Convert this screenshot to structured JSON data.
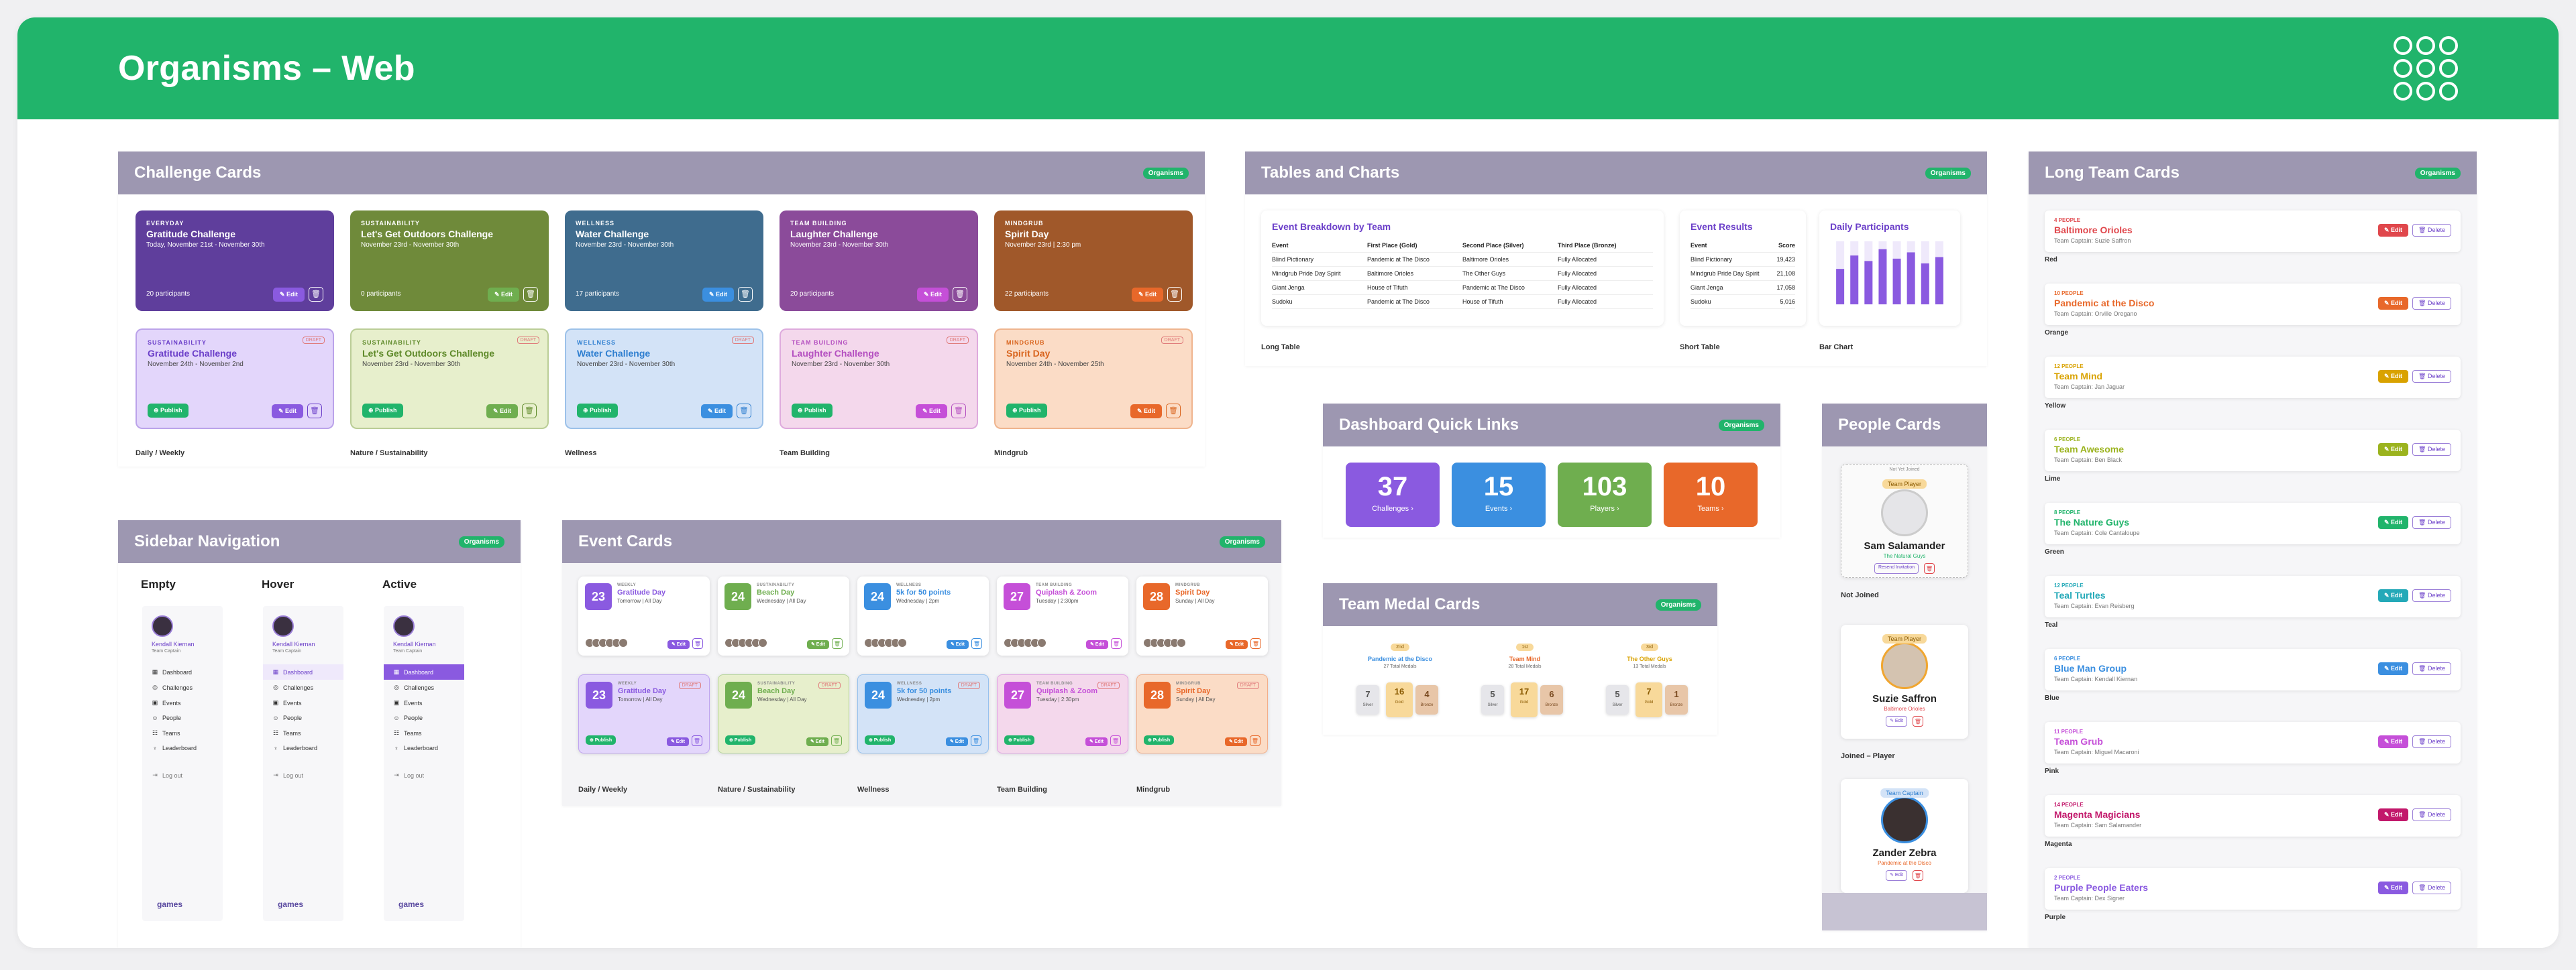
{
  "header": {
    "title": "Organisms – Web"
  },
  "tag": "Organisms",
  "challenge": {
    "title": "Challenge Cards",
    "top": [
      {
        "cat": "EVERYDAY",
        "title": "Gratitude Challenge",
        "date": "Today, November 21st - November 30th",
        "count": "20 participants",
        "bg": "#5f3e9c",
        "btn": "#8a5ae0"
      },
      {
        "cat": "SUSTAINABILITY",
        "title": "Let's Get Outdoors Challenge",
        "date": "November 23rd - November 30th",
        "count": "0 participants",
        "bg": "#6f8a3a",
        "btn": "#6fae4f"
      },
      {
        "cat": "WELLNESS",
        "title": "Water Challenge",
        "date": "November 23rd - November 30th",
        "count": "17 participants",
        "bg": "#3f6c8e",
        "btn": "#3b8fe0"
      },
      {
        "cat": "TEAM BUILDING",
        "title": "Laughter Challenge",
        "date": "November 23rd - November 30th",
        "count": "20 participants",
        "bg": "#8b4b9a",
        "btn": "#c54fd8"
      },
      {
        "cat": "MINDGRUB",
        "title": "Spirit Day",
        "date": "November 23rd  |  2:30 pm",
        "count": "22 participants",
        "bg": "#a0582a",
        "btn": "#e8682a"
      }
    ],
    "bottom": [
      {
        "cat": "SUSTAINABILITY",
        "title": "Gratitude Challenge",
        "date": "November 24th - November 2nd",
        "bg": "#e3d6fb",
        "fg": "#6b3fc9",
        "btn": "#8a5ae0"
      },
      {
        "cat": "SUSTAINABILITY",
        "title": "Let's Get Outdoors Challenge",
        "date": "November 23rd - November 30th",
        "bg": "#e7efcc",
        "fg": "#5f8a2a",
        "btn": "#6fae4f"
      },
      {
        "cat": "WELLNESS",
        "title": "Water Challenge",
        "date": "November 23rd - November 30th",
        "bg": "#d3e3f7",
        "fg": "#2f7fd0",
        "btn": "#3b8fe0"
      },
      {
        "cat": "TEAM BUILDING",
        "title": "Laughter Challenge",
        "date": "November 23rd - November 30th",
        "bg": "#f4d8ec",
        "fg": "#b44fc0",
        "btn": "#c54fd8"
      },
      {
        "cat": "MINDGRUB",
        "title": "Spirit Day",
        "date": "November 24th - November 25th",
        "bg": "#fbdcc6",
        "fg": "#d9651e",
        "btn": "#e8682a"
      }
    ],
    "captions": [
      "Daily / Weekly",
      "Nature / Sustainability",
      "Wellness",
      "Team Building",
      "Mindgrub"
    ],
    "edit": "✎ Edit",
    "publish": "⊕ Publish",
    "draft": "DRAFT"
  },
  "tables": {
    "title": "Tables and Charts",
    "long": {
      "title": "Event Breakdown by Team",
      "headers": [
        "Event",
        "First Place (Gold)",
        "Second Place (Silver)",
        "Third Place (Bronze)"
      ],
      "rows": [
        [
          "Blind Pictionary",
          "Pandemic at The Disco",
          "Baltimore Orioles",
          "Fully Allocated"
        ],
        [
          "Mindgrub Pride Day Spirit",
          "Baltimore Orioles",
          "The Other Guys",
          "Fully Allocated"
        ],
        [
          "Giant Jenga",
          "House of Tifuth",
          "Pandemic at The Disco",
          "Fully Allocated"
        ],
        [
          "Sudoku",
          "Pandemic at The Disco",
          "House of Tifuth",
          "Fully Allocated"
        ]
      ],
      "caption": "Long Table"
    },
    "short": {
      "title": "Event Results",
      "headers": [
        "Event",
        "Score"
      ],
      "rows": [
        [
          "Blind Pictionary",
          "19,423"
        ],
        [
          "Mindgrub Pride Day Spirit",
          "21,108"
        ],
        [
          "Giant Jenga",
          "17,058"
        ],
        [
          "Sudoku",
          "5,016"
        ]
      ],
      "caption": "Short Table"
    },
    "chart": {
      "title": "Daily Participants",
      "caption": "Bar Chart"
    }
  },
  "chart_data": {
    "type": "bar",
    "title": "Daily Participants",
    "values": [
      45,
      62,
      55,
      70,
      58,
      66,
      52,
      60
    ],
    "ylim": [
      0,
      80
    ]
  },
  "quick": {
    "title": "Dashboard Quick Links",
    "items": [
      {
        "n": "37",
        "l": "Challenges ›",
        "bg": "#8a5ae0"
      },
      {
        "n": "15",
        "l": "Events ›",
        "bg": "#3b8fe0"
      },
      {
        "n": "103",
        "l": "Players ›",
        "bg": "#6fae4f"
      },
      {
        "n": "10",
        "l": "Teams ›",
        "bg": "#e8682a"
      }
    ]
  },
  "medal": {
    "title": "Team Medal Cards",
    "teams": [
      {
        "rank": "2nd",
        "name": "Pandemic at the Disco",
        "total": "27 Total Medals",
        "col": "#3b8fe0",
        "m": [
          "7",
          "16",
          "4"
        ]
      },
      {
        "rank": "1st",
        "name": "Team Mind",
        "total": "28 Total Medals",
        "col": "#e8682a",
        "m": [
          "5",
          "17",
          "6"
        ]
      },
      {
        "rank": "3rd",
        "name": "The Other Guys",
        "total": "13 Total Medals",
        "col": "#d9a200",
        "m": [
          "5",
          "7",
          "1"
        ]
      }
    ],
    "labels": [
      "Silver",
      "Gold",
      "Bronze"
    ]
  },
  "people": {
    "title": "People Cards",
    "cards": [
      {
        "badge": "Team Player",
        "name": "Sam Salamander",
        "team": "The Natural Guys",
        "caption": "Not Joined",
        "top": "Not Yet Joined",
        "resend": "Resend Invitation"
      },
      {
        "badge": "Team Player",
        "name": "Suzie Saffron",
        "team": "Baltimore Orioles",
        "caption": "Joined – Player"
      },
      {
        "badge": "Team Captain",
        "name": "Zander Zebra",
        "team": "Pandemic at the Disco",
        "caption": "Joined – Captain"
      }
    ],
    "edit": "✎ Edit"
  },
  "sidebar": {
    "title": "Sidebar Navigation",
    "states": [
      "Empty",
      "Hover",
      "Active"
    ],
    "user": "Kendall Kiernan",
    "role": "Team Captain",
    "items": [
      {
        "ic": "▦",
        "l": "Dashboard"
      },
      {
        "ic": "◎",
        "l": "Challenges"
      },
      {
        "ic": "▣",
        "l": "Events"
      },
      {
        "ic": "☺",
        "l": "People"
      },
      {
        "ic": "☷",
        "l": "Teams"
      },
      {
        "ic": "♀",
        "l": "Leaderboard"
      }
    ],
    "logout": "Log out",
    "brand": "games"
  },
  "events": {
    "title": "Event Cards",
    "cards": [
      {
        "day": "23",
        "cat": "WEEKLY",
        "title": "Gratitude Day",
        "time": "Tomorrow  |  All Day",
        "col": "#8a5ae0",
        "bg": "#e3d6fb"
      },
      {
        "day": "24",
        "cat": "SUSTAINABILITY",
        "title": "Beach Day",
        "time": "Wednesday  |  All Day",
        "col": "#6fae4f",
        "bg": "#e7efcc"
      },
      {
        "day": "24",
        "cat": "WELLNESS",
        "title": "5k for 50 points",
        "time": "Wednesday  |  2pm",
        "col": "#3b8fe0",
        "bg": "#d3e3f7"
      },
      {
        "day": "27",
        "cat": "TEAM BUILDING",
        "title": "Quiplash & Zoom",
        "time": "Tuesday  |  2:30pm",
        "col": "#c54fd8",
        "bg": "#f4d8ec"
      },
      {
        "day": "28",
        "cat": "MINDGRUB",
        "title": "Spirit Day",
        "time": "Sunday  |  All Day",
        "col": "#e8682a",
        "bg": "#fbdcc6"
      }
    ],
    "captions": [
      "Daily / Weekly",
      "Nature / Sustainability",
      "Wellness",
      "Team Building",
      "Mindgrub"
    ],
    "edit": "✎ Edit",
    "publish": "⊕ Publish",
    "draft": "DRAFT"
  },
  "longteam": {
    "title": "Long Team Cards",
    "edit": "✎ Edit",
    "delete": "🗑 Delete",
    "rows": [
      {
        "pp": "4 PEOPLE",
        "name": "Baltimore Orioles",
        "cap": "Team Captain: Suzie Saffron",
        "col": "#e0474c",
        "lab": "Red"
      },
      {
        "pp": "10 PEOPLE",
        "name": "Pandemic at the Disco",
        "cap": "Team Captain: Orville Oregano",
        "col": "#e8682a",
        "lab": "Orange"
      },
      {
        "pp": "12 PEOPLE",
        "name": "Team Mind",
        "cap": "Team Captain: Jan Jaguar",
        "col": "#d9a200",
        "lab": "Yellow"
      },
      {
        "pp": "6 PEOPLE",
        "name": "Team Awesome",
        "cap": "Team Captain: Ben Black",
        "col": "#9bb31e",
        "lab": "Lime"
      },
      {
        "pp": "8 PEOPLE",
        "name": "The Nature Guys",
        "cap": "Team Captain: Cole Cantaloupe",
        "col": "#21b46b",
        "lab": "Green"
      },
      {
        "pp": "12 PEOPLE",
        "name": "Teal Turtles",
        "cap": "Team Captain: Evan Reisberg",
        "col": "#24a9b8",
        "lab": "Teal"
      },
      {
        "pp": "6 PEOPLE",
        "name": "Blue Man Group",
        "cap": "Team Captain: Kendall Kiernan",
        "col": "#3b8fe0",
        "lab": "Blue"
      },
      {
        "pp": "11 PEOPLE",
        "name": "Team Grub",
        "cap": "Team Captain: Miguel Macaroni",
        "col": "#c54fd8",
        "lab": "Pink"
      },
      {
        "pp": "14 PEOPLE",
        "name": "Magenta Magicians",
        "cap": "Team Captain: Sam Salamander",
        "col": "#c2186b",
        "lab": "Magenta"
      },
      {
        "pp": "2 PEOPLE",
        "name": "Purple People Eaters",
        "cap": "Team Captain: Dex Signer",
        "col": "#8a5ae0",
        "lab": "Purple"
      }
    ]
  }
}
